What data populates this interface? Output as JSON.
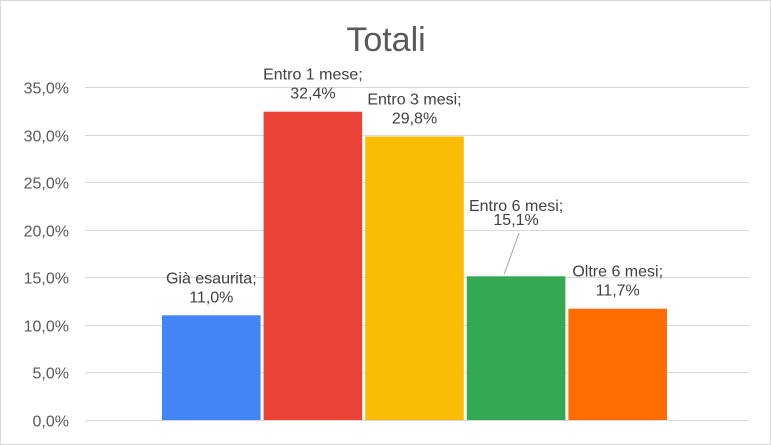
{
  "chart_data": {
    "type": "bar",
    "title": "Totali",
    "xlabel": "",
    "ylabel": "",
    "ylim": [
      0,
      35
    ],
    "ytick_step": 5,
    "ytick_labels": [
      "0,0%",
      "5,0%",
      "10,0%",
      "15,0%",
      "20,0%",
      "25,0%",
      "30,0%",
      "35,0%"
    ],
    "grid": true,
    "legend": "none",
    "categories": [
      "Già esaurita",
      "Entro 1 mese",
      "Entro 3 mesi",
      "Entro 6 mesi",
      "Oltre 6 mesi"
    ],
    "values": [
      11.0,
      32.4,
      29.8,
      15.1,
      11.7
    ],
    "value_labels": [
      "11,0%",
      "32,4%",
      "29,8%",
      "15,1%",
      "11,7%"
    ],
    "colors": [
      "#4285f4",
      "#ea4335",
      "#fbbc04",
      "#34a853",
      "#ff6d01"
    ]
  }
}
